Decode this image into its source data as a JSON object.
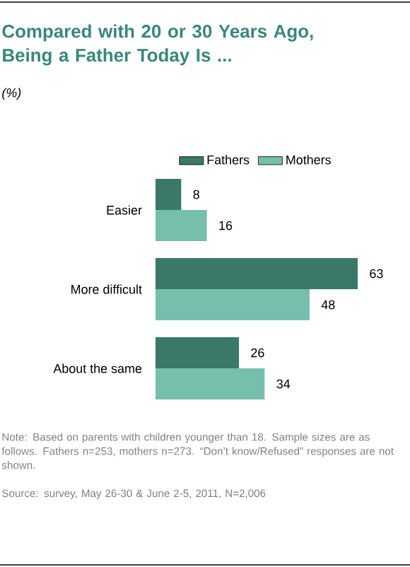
{
  "chart_data": {
    "type": "bar",
    "orientation": "horizontal",
    "title": "Compared with 20 or 30 Years Ago, Being a Father Today Is ...",
    "subtitle": "(%)",
    "categories": [
      "Easier",
      "More difficult",
      "About the same"
    ],
    "series": [
      {
        "name": "Fathers",
        "color": "#3a7868",
        "values": [
          8,
          63,
          26
        ]
      },
      {
        "name": "Mothers",
        "color": "#76bfad",
        "values": [
          16,
          48,
          34
        ]
      }
    ],
    "data_labels": true,
    "legend": "top",
    "annotations": [
      "Note: Based on parents with children younger than 18. Sample sizes are as follows. Fathers n=253, mothers n=273. “Don’t know/Refused” responses are not shown.",
      "Source: survey, May 26-30 & June 2-5, 2011, N=2,006"
    ]
  }
}
